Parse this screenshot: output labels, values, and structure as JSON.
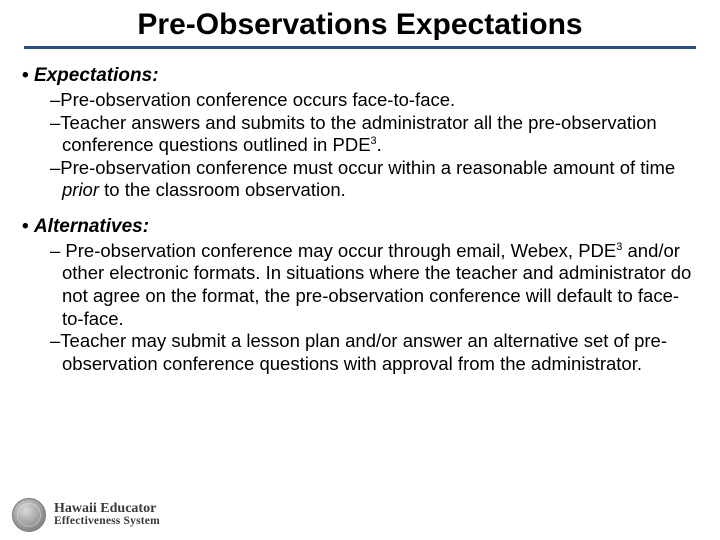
{
  "title": "Pre-Observations Expectations",
  "title_underline_color": "#2a4e7f",
  "sections": {
    "expectations": {
      "heading": "Expectations:",
      "items": [
        "Pre-observation conference occurs face-to-face.",
        "Teacher answers and submits to the administrator all the pre-observation conference questions outlined in PDE",
        "Pre-observation conference must occur within a reasonable amount of time"
      ],
      "item1_sup": "3",
      "item1_tail": ".",
      "item2_italic": "prior",
      "item2_tail": " to the classroom observation."
    },
    "alternatives": {
      "heading": "Alternatives:",
      "items": [
        " Pre-observation conference may occur through email, Webex, PDE",
        "Teacher may submit a lesson plan and/or answer an alternative set of pre-observation conference questions with approval from the administrator."
      ],
      "item0_sup": "3",
      "item0_tail": " and/or other electronic formats.  In situations where the teacher and administrator do not agree on the format, the pre-observation conference will default to face-to-face."
    }
  },
  "footer": {
    "line1": "Hawaii Educator",
    "line2": "Effectiveness System"
  },
  "colors": {
    "text": "#000000",
    "background": "#ffffff"
  },
  "fontsizes": {
    "title": 30,
    "heading": 19,
    "body": 18.5,
    "footer_line1": 14,
    "footer_line2": 11.5
  }
}
